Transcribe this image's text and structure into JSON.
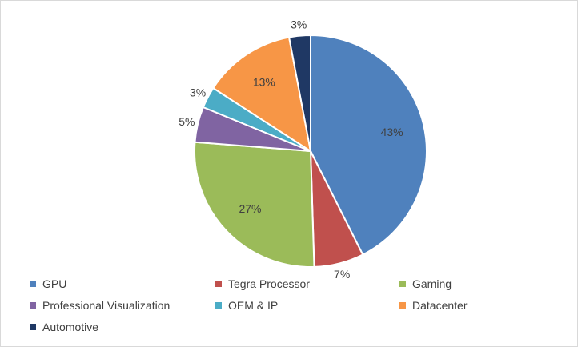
{
  "chart_data": {
    "type": "pie",
    "title": "",
    "categories": [
      "GPU",
      "Tegra Processor",
      "Gaming",
      "Professional Visualization",
      "OEM & IP",
      "Datacenter",
      "Automotive"
    ],
    "values": [
      43,
      7,
      27,
      5,
      3,
      13,
      3
    ],
    "labels": [
      "43%",
      "7%",
      "27%",
      "5%",
      "3%",
      "13%",
      "3%"
    ],
    "colors": [
      "#4f81bd",
      "#c0504d",
      "#9bbb59",
      "#8064a2",
      "#4bacc6",
      "#f79646",
      "#1f3864"
    ],
    "start_angle_deg": 0,
    "direction": "clockwise",
    "legend_position": "bottom"
  }
}
